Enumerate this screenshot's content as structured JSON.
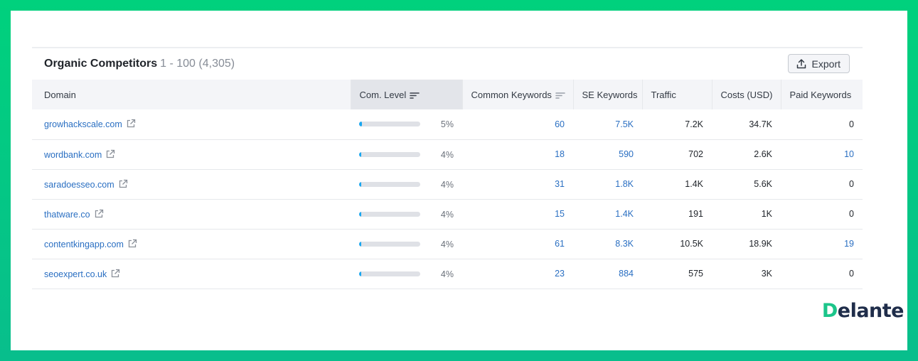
{
  "widget": {
    "title": "Organic Competitors",
    "range": "1 - 100 (4,305)",
    "export_label": "Export"
  },
  "columns": [
    "Domain",
    "Com. Level",
    "Common Keywords",
    "SE Keywords",
    "Traffic",
    "Costs (USD)",
    "Paid Keywords"
  ],
  "rows": [
    {
      "domain": "growhackscale.com",
      "level": 0.05,
      "level_label": "5%",
      "common_keywords": "60",
      "se_keywords": "7.5K",
      "traffic": "7.2K",
      "costs": "34.7K",
      "paid_keywords": "0"
    },
    {
      "domain": "wordbank.com",
      "level": 0.04,
      "level_label": "4%",
      "common_keywords": "18",
      "se_keywords": "590",
      "traffic": "702",
      "costs": "2.6K",
      "paid_keywords": "10"
    },
    {
      "domain": "saradoesseo.com",
      "level": 0.04,
      "level_label": "4%",
      "common_keywords": "31",
      "se_keywords": "1.8K",
      "traffic": "1.4K",
      "costs": "5.6K",
      "paid_keywords": "0"
    },
    {
      "domain": "thatware.co",
      "level": 0.04,
      "level_label": "4%",
      "common_keywords": "15",
      "se_keywords": "1.4K",
      "traffic": "191",
      "costs": "1K",
      "paid_keywords": "0"
    },
    {
      "domain": "contentkingapp.com",
      "level": 0.04,
      "level_label": "4%",
      "common_keywords": "61",
      "se_keywords": "8.3K",
      "traffic": "10.5K",
      "costs": "18.9K",
      "paid_keywords": "19"
    },
    {
      "domain": "seoexpert.co.uk",
      "level": 0.04,
      "level_label": "4%",
      "common_keywords": "23",
      "se_keywords": "884",
      "traffic": "575",
      "costs": "3K",
      "paid_keywords": "0"
    }
  ],
  "logo": {
    "first": "D",
    "rest": "elante"
  },
  "colors": {
    "frame": "#00d17d",
    "link": "#2a6fc2",
    "level_fill": "#1aa7f0",
    "logo_accent": "#1cc58a"
  }
}
